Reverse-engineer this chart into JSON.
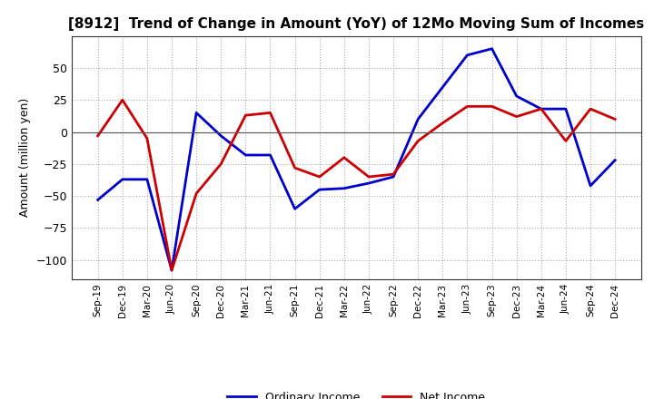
{
  "title": "[8912]  Trend of Change in Amount (YoY) of 12Mo Moving Sum of Incomes",
  "ylabel": "Amount (million yen)",
  "ylim": [
    -115,
    75
  ],
  "yticks": [
    50,
    25,
    0,
    -25,
    -50,
    -75,
    -100
  ],
  "background_color": "#ffffff",
  "plot_bg_color": "#ffffff",
  "grid_color": "#aaaaaa",
  "ordinary_income_color": "#0000cc",
  "net_income_color": "#cc0000",
  "x_labels": [
    "Sep-19",
    "Dec-19",
    "Mar-20",
    "Jun-20",
    "Sep-20",
    "Dec-20",
    "Mar-21",
    "Jun-21",
    "Sep-21",
    "Dec-21",
    "Mar-22",
    "Jun-22",
    "Sep-22",
    "Dec-22",
    "Mar-23",
    "Jun-23",
    "Sep-23",
    "Dec-23",
    "Mar-24",
    "Jun-24",
    "Sep-24",
    "Dec-24"
  ],
  "ordinary_income": [
    -53,
    -37,
    -37,
    -108,
    15,
    -3,
    -18,
    -18,
    -60,
    -45,
    -44,
    -40,
    -35,
    10,
    35,
    60,
    65,
    28,
    18,
    18,
    -42,
    -22
  ],
  "net_income": [
    -3,
    25,
    -5,
    -108,
    -48,
    -25,
    13,
    15,
    -28,
    -35,
    -20,
    -35,
    -33,
    -7,
    7,
    20,
    20,
    12,
    18,
    -7,
    18,
    10
  ]
}
